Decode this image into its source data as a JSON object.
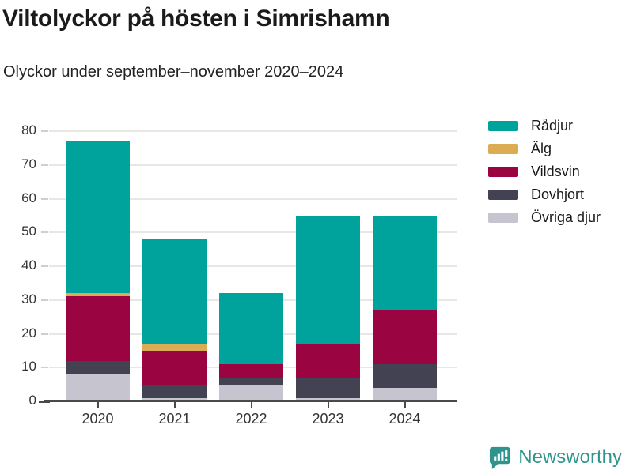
{
  "title": "Viltolyckor på hösten i Simrishamn",
  "subtitle": "Olyckor under september–november 2020–2024",
  "footer": {
    "brand": "Newsworthy"
  },
  "colors": {
    "accent_teal": "#00A39B",
    "gold": "#DCAC55",
    "maroon": "#990441",
    "dark_slate": "#434253",
    "light_gray": "#C5C4CF",
    "brand_teal": "#2F948C",
    "gridline": "#E7E7E7",
    "axis": "#4A4A4A"
  },
  "chart_data": {
    "type": "bar",
    "stacked": true,
    "title": "Viltolyckor på hösten i Simrishamn",
    "subtitle": "Olyckor under september–november 2020–2024",
    "categories": [
      "2020",
      "2021",
      "2022",
      "2023",
      "2024"
    ],
    "series": [
      {
        "name": "Rådjur",
        "color": "#00A39B",
        "values": [
          45,
          31,
          21,
          38,
          28
        ]
      },
      {
        "name": "Älg",
        "color": "#DCAC55",
        "values": [
          1,
          2,
          0,
          0,
          0
        ]
      },
      {
        "name": "Vildsvin",
        "color": "#990441",
        "values": [
          19,
          10,
          4,
          10,
          16
        ]
      },
      {
        "name": "Dovhjort",
        "color": "#434253",
        "values": [
          4,
          4,
          2,
          6,
          7
        ]
      },
      {
        "name": "Övriga djur",
        "color": "#C5C4CF",
        "values": [
          8,
          1,
          5,
          1,
          4
        ]
      }
    ],
    "totals": [
      77,
      48,
      32,
      55,
      55
    ],
    "xlabel": "",
    "ylabel": "",
    "ylim": [
      0,
      80
    ],
    "yticks": [
      0,
      10,
      20,
      30,
      40,
      50,
      60,
      70,
      80
    ],
    "grid": true,
    "legend_position": "right",
    "legend_order_top_to_bottom": [
      "Rådjur",
      "Älg",
      "Vildsvin",
      "Dovhjort",
      "Övriga djur"
    ]
  }
}
